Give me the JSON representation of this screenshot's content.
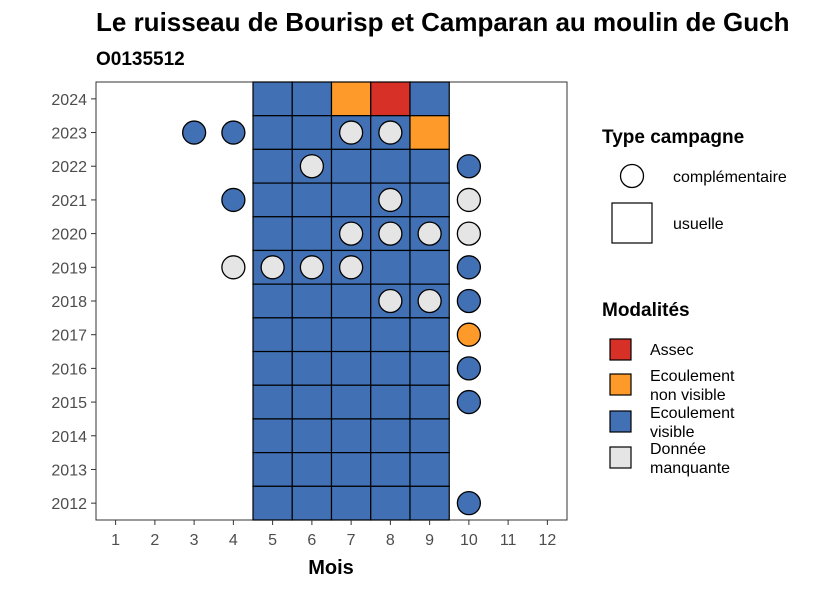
{
  "chart_data": {
    "type": "heatmap",
    "title": "Le ruisseau de Bourisp et Camparan au moulin de Guch",
    "subtitle": "O0135512",
    "xlabel": "Mois",
    "ylabel": "",
    "x_ticks": [
      1,
      2,
      3,
      4,
      5,
      6,
      7,
      8,
      9,
      10,
      11,
      12
    ],
    "y_ticks": [
      2012,
      2013,
      2014,
      2015,
      2016,
      2017,
      2018,
      2019,
      2020,
      2021,
      2022,
      2023,
      2024
    ],
    "xlim": [
      0.5,
      12.5
    ],
    "ylim": [
      2011.5,
      2024.5
    ],
    "grid": false,
    "legend_position": "right",
    "legend_shape": {
      "title": "Type campagne",
      "items": [
        {
          "key": "complementaire",
          "label": "complémentaire",
          "shape": "circle"
        },
        {
          "key": "usuelle",
          "label": "usuelle",
          "shape": "square"
        }
      ]
    },
    "legend_fill": {
      "title": "Modalités",
      "items": [
        {
          "key": "assec",
          "lines": [
            "Assec"
          ],
          "color": "#d73027"
        },
        {
          "key": "ecoulement_non_visible",
          "lines": [
            "Ecoulement",
            "non visible"
          ],
          "color": "#fd9a2a"
        },
        {
          "key": "ecoulement_visible",
          "lines": [
            "Ecoulement",
            "visible"
          ],
          "color": "#4171b4"
        },
        {
          "key": "donnee_manquante",
          "lines": [
            "Donnée",
            "manquante"
          ],
          "color": "#e5e5e5"
        }
      ]
    },
    "usuelle": [
      {
        "year": 2024,
        "months": [
          5,
          6,
          7,
          8,
          9
        ],
        "values": [
          "ecoulement_visible",
          "ecoulement_visible",
          "ecoulement_non_visible",
          "assec",
          "ecoulement_visible"
        ]
      },
      {
        "year": 2023,
        "months": [
          5,
          6,
          7,
          8,
          9
        ],
        "values": [
          "ecoulement_visible",
          "ecoulement_visible",
          "ecoulement_visible",
          "ecoulement_visible",
          "ecoulement_non_visible"
        ]
      },
      {
        "year": 2022,
        "months": [
          5,
          6,
          7,
          8,
          9
        ],
        "values": [
          "ecoulement_visible",
          "ecoulement_visible",
          "ecoulement_visible",
          "ecoulement_visible",
          "ecoulement_visible"
        ]
      },
      {
        "year": 2021,
        "months": [
          5,
          6,
          7,
          8,
          9
        ],
        "values": [
          "ecoulement_visible",
          "ecoulement_visible",
          "ecoulement_visible",
          "ecoulement_visible",
          "ecoulement_visible"
        ]
      },
      {
        "year": 2020,
        "months": [
          5,
          6,
          7,
          8,
          9
        ],
        "values": [
          "ecoulement_visible",
          "ecoulement_visible",
          "ecoulement_visible",
          "ecoulement_visible",
          "ecoulement_visible"
        ]
      },
      {
        "year": 2019,
        "months": [
          5,
          6,
          7,
          8,
          9
        ],
        "values": [
          "ecoulement_visible",
          "ecoulement_visible",
          "ecoulement_visible",
          "ecoulement_visible",
          "ecoulement_visible"
        ]
      },
      {
        "year": 2018,
        "months": [
          5,
          6,
          7,
          8,
          9
        ],
        "values": [
          "ecoulement_visible",
          "ecoulement_visible",
          "ecoulement_visible",
          "ecoulement_visible",
          "ecoulement_visible"
        ]
      },
      {
        "year": 2017,
        "months": [
          5,
          6,
          7,
          8,
          9
        ],
        "values": [
          "ecoulement_visible",
          "ecoulement_visible",
          "ecoulement_visible",
          "ecoulement_visible",
          "ecoulement_visible"
        ]
      },
      {
        "year": 2016,
        "months": [
          5,
          6,
          7,
          8,
          9
        ],
        "values": [
          "ecoulement_visible",
          "ecoulement_visible",
          "ecoulement_visible",
          "ecoulement_visible",
          "ecoulement_visible"
        ]
      },
      {
        "year": 2015,
        "months": [
          5,
          6,
          7,
          8,
          9
        ],
        "values": [
          "ecoulement_visible",
          "ecoulement_visible",
          "ecoulement_visible",
          "ecoulement_visible",
          "ecoulement_visible"
        ]
      },
      {
        "year": 2014,
        "months": [
          5,
          6,
          7,
          8,
          9
        ],
        "values": [
          "ecoulement_visible",
          "ecoulement_visible",
          "ecoulement_visible",
          "ecoulement_visible",
          "ecoulement_visible"
        ]
      },
      {
        "year": 2013,
        "months": [
          5,
          6,
          7,
          8,
          9
        ],
        "values": [
          "ecoulement_visible",
          "ecoulement_visible",
          "ecoulement_visible",
          "ecoulement_visible",
          "ecoulement_visible"
        ]
      },
      {
        "year": 2012,
        "months": [
          5,
          6,
          7,
          8,
          9
        ],
        "values": [
          "ecoulement_visible",
          "ecoulement_visible",
          "ecoulement_visible",
          "ecoulement_visible",
          "ecoulement_visible"
        ]
      }
    ],
    "complementaire": [
      {
        "year": 2023,
        "month": 3,
        "value": "ecoulement_visible"
      },
      {
        "year": 2023,
        "month": 4,
        "value": "ecoulement_visible"
      },
      {
        "year": 2023,
        "month": 7,
        "value": "donnee_manquante"
      },
      {
        "year": 2023,
        "month": 8,
        "value": "donnee_manquante"
      },
      {
        "year": 2022,
        "month": 6,
        "value": "donnee_manquante"
      },
      {
        "year": 2022,
        "month": 10,
        "value": "ecoulement_visible"
      },
      {
        "year": 2021,
        "month": 4,
        "value": "ecoulement_visible"
      },
      {
        "year": 2021,
        "month": 8,
        "value": "donnee_manquante"
      },
      {
        "year": 2021,
        "month": 10,
        "value": "donnee_manquante"
      },
      {
        "year": 2020,
        "month": 7,
        "value": "donnee_manquante"
      },
      {
        "year": 2020,
        "month": 8,
        "value": "donnee_manquante"
      },
      {
        "year": 2020,
        "month": 9,
        "value": "donnee_manquante"
      },
      {
        "year": 2020,
        "month": 10,
        "value": "donnee_manquante"
      },
      {
        "year": 2019,
        "month": 4,
        "value": "donnee_manquante"
      },
      {
        "year": 2019,
        "month": 5,
        "value": "donnee_manquante"
      },
      {
        "year": 2019,
        "month": 6,
        "value": "donnee_manquante"
      },
      {
        "year": 2019,
        "month": 7,
        "value": "donnee_manquante"
      },
      {
        "year": 2019,
        "month": 10,
        "value": "ecoulement_visible"
      },
      {
        "year": 2018,
        "month": 8,
        "value": "donnee_manquante"
      },
      {
        "year": 2018,
        "month": 9,
        "value": "donnee_manquante"
      },
      {
        "year": 2018,
        "month": 10,
        "value": "ecoulement_visible"
      },
      {
        "year": 2017,
        "month": 10,
        "value": "ecoulement_non_visible"
      },
      {
        "year": 2016,
        "month": 10,
        "value": "ecoulement_visible"
      },
      {
        "year": 2015,
        "month": 10,
        "value": "ecoulement_visible"
      },
      {
        "year": 2012,
        "month": 10,
        "value": "ecoulement_visible"
      }
    ]
  }
}
